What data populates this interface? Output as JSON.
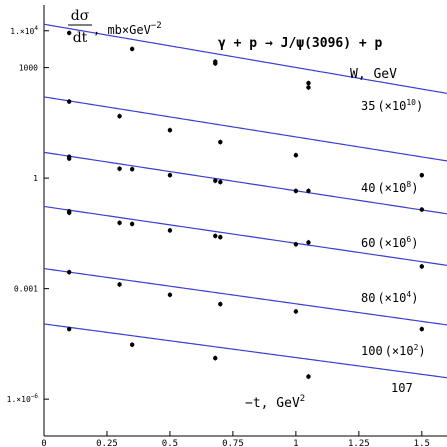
{
  "chart_data": {
    "type": "scatter",
    "title": "γ + p → J/ψ(3096) + p",
    "ylabel_numerator": "dσ",
    "ylabel_denominator": "dt",
    "ylabel_units": ", mb×GeV",
    "ylabel_exp": "−2",
    "xlabel_text": "−t, GeV",
    "xlabel_exp": "2",
    "legend_header": "W, GeV",
    "y_scale": "log",
    "xlim": [
      0,
      1.6
    ],
    "ylim": [
      1e-07,
      50000.0
    ],
    "x_ticks": [
      {
        "v": 0,
        "label": "0"
      },
      {
        "v": 0.25,
        "label": "0.25"
      },
      {
        "v": 0.5,
        "label": "0.5"
      },
      {
        "v": 0.75,
        "label": "0.75"
      },
      {
        "v": 1.0,
        "label": "1"
      },
      {
        "v": 1.25,
        "label": "1.25"
      },
      {
        "v": 1.5,
        "label": "1.5"
      }
    ],
    "y_ticks": [
      {
        "v": 10000,
        "mant": "1.×10",
        "exp": "4"
      },
      {
        "v": 1000,
        "mant": "1000",
        "exp": ""
      },
      {
        "v": 1,
        "mant": "1",
        "exp": ""
      },
      {
        "v": 0.001,
        "mant": "0.001",
        "exp": ""
      },
      {
        "v": 1e-06,
        "mant": "1.×10",
        "exp": "−6"
      }
    ],
    "curve_color": "#3a3fd0",
    "series": [
      {
        "name": "35",
        "label_num": "35",
        "label_scale": "(×10",
        "label_exp": "10",
        "label_close": ")",
        "fit": {
          "a": 15000,
          "b": 2.7
        },
        "x": [
          0.1,
          0.35,
          0.68,
          0.68,
          1.05,
          1.05
        ],
        "y": [
          8700,
          3200,
          1450,
          1300,
          380,
          290
        ]
      },
      {
        "name": "40",
        "label_num": "40",
        "label_scale": "(×10",
        "label_exp": "8",
        "label_close": ")",
        "fit": {
          "a": 160,
          "b": 2.5
        },
        "x": [
          0.1,
          0.3,
          0.5,
          0.7,
          1.0,
          1.5
        ],
        "y": [
          120,
          48,
          20,
          9.5,
          4.2,
          1.2
        ]
      },
      {
        "name": "60",
        "label_num": "60",
        "label_scale": "(×10",
        "label_exp": "6",
        "label_close": ")",
        "fit": {
          "a": 5,
          "b": 2.4
        },
        "x": [
          0.1,
          0.1,
          0.3,
          0.35,
          0.5,
          0.68,
          0.7,
          1.0,
          1.05,
          1.5
        ],
        "y": [
          3.8,
          3.4,
          1.8,
          1.75,
          1.2,
          0.85,
          0.78,
          0.45,
          0.45,
          0.14
        ]
      },
      {
        "name": "80",
        "label_num": "80",
        "label_scale": "(×10",
        "label_exp": "4",
        "label_close": ")",
        "fit": {
          "a": 0.17,
          "b": 2.3
        },
        "x": [
          0.1,
          0.1,
          0.3,
          0.35,
          0.5,
          0.68,
          0.7,
          1.0,
          1.05,
          1.5
        ],
        "y": [
          0.125,
          0.115,
          0.061,
          0.057,
          0.038,
          0.027,
          0.025,
          0.016,
          0.018,
          0.004
        ]
      },
      {
        "name": "100",
        "label_num": "100",
        "label_scale": "(×10",
        "label_exp": "2",
        "label_close": ")",
        "fit": {
          "a": 0.0035,
          "b": 2.2
        },
        "x": [
          0.1,
          0.3,
          0.5,
          0.7,
          1.0,
          1.5
        ],
        "y": [
          0.0028,
          0.0013,
          0.00068,
          0.00038,
          0.00024,
          8e-05
        ]
      },
      {
        "name": "107",
        "label_num": "107",
        "label_scale": "",
        "label_exp": "",
        "label_close": "",
        "fit": {
          "a": 0.00011,
          "b": 2.1
        },
        "x": [
          0.1,
          0.35,
          0.68,
          1.05
        ],
        "y": [
          8e-05,
          3e-05,
          1.3e-05,
          4.1e-06
        ]
      }
    ]
  }
}
